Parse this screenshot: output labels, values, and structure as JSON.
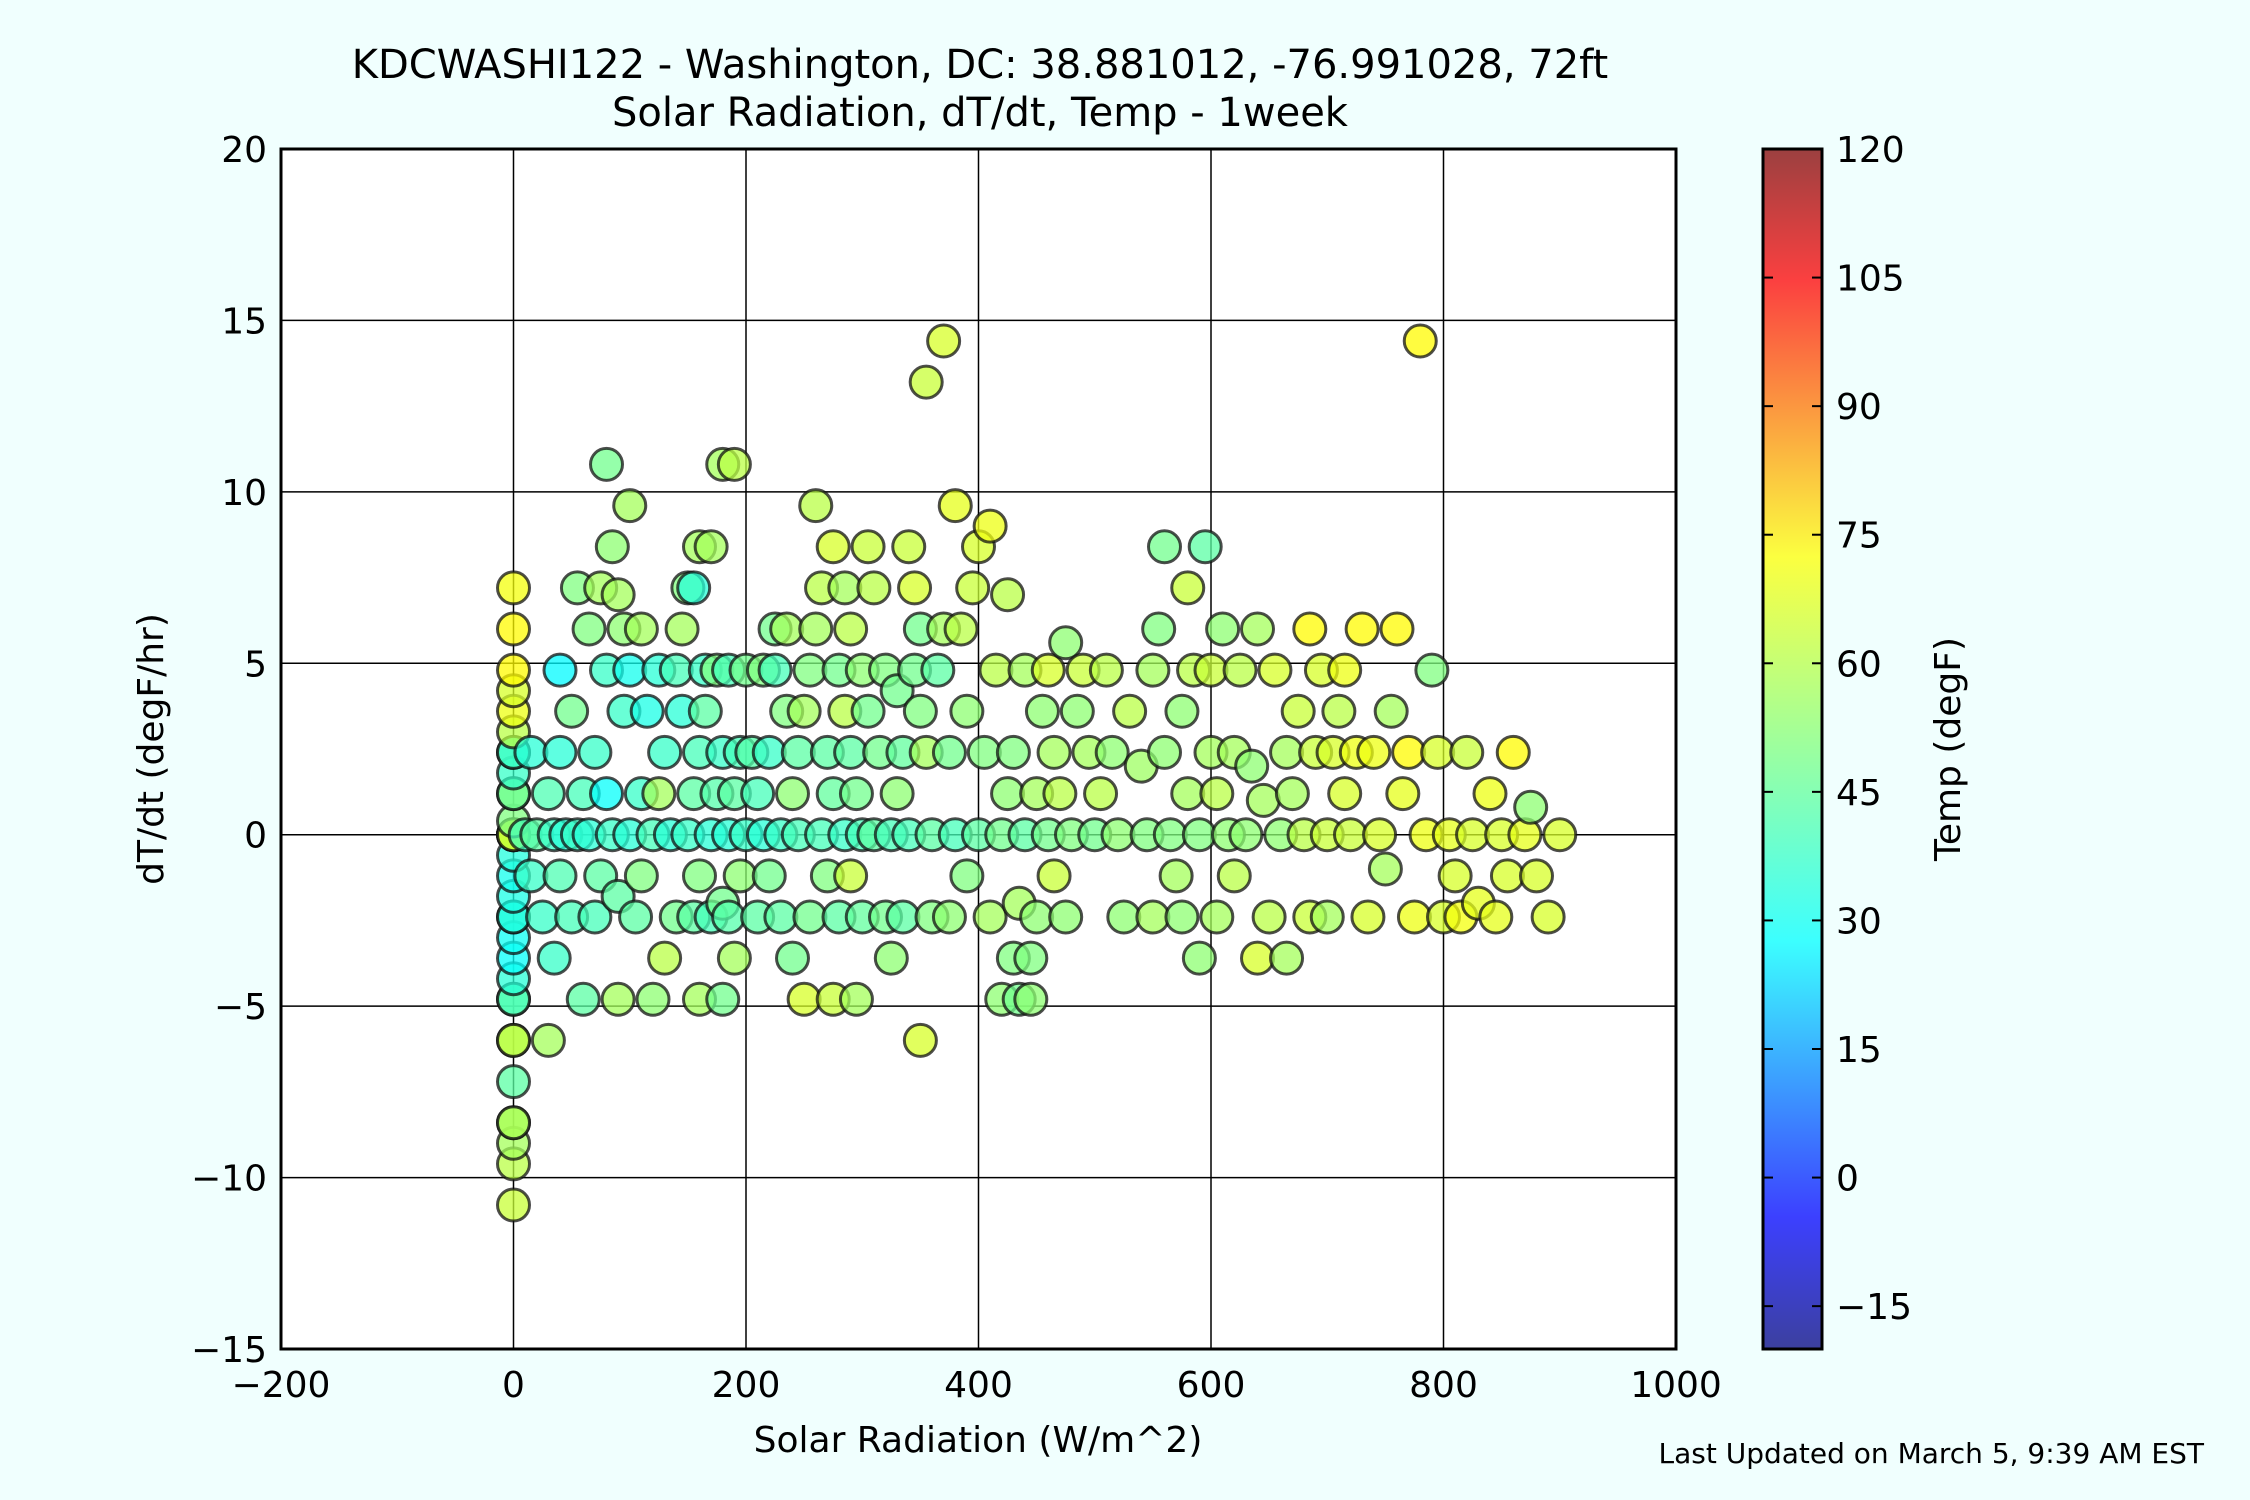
{
  "page": {
    "background": "#f0fffe"
  },
  "chart_data": {
    "type": "scatter",
    "title": "KDCWASHI122 - Washington, DC: 38.881012, -76.991028, 72ft",
    "subtitle": "Solar Radiation, dT/dt, Temp - 1week",
    "xlabel": "Solar Radiation (W/m^2)",
    "ylabel": "dT/dt (degF/hr)",
    "xlim": [
      -200,
      1000
    ],
    "ylim": [
      -15,
      20
    ],
    "x_ticks": [
      -200,
      0,
      200,
      400,
      600,
      800,
      1000
    ],
    "x_tick_labels": [
      "−200",
      "0",
      "200",
      "400",
      "600",
      "800",
      "1000"
    ],
    "y_ticks": [
      -15,
      -10,
      -5,
      0,
      5,
      10,
      15,
      20
    ],
    "y_tick_labels": [
      "−15",
      "−10",
      "−5",
      "0",
      "5",
      "10",
      "15",
      "20"
    ],
    "grid": true,
    "footer": "Last Updated on March 5, 9:39 AM EST",
    "colorbar": {
      "label": "Temp (degF)",
      "range": [
        -20,
        120
      ],
      "ticks": [
        -15,
        0,
        15,
        30,
        45,
        60,
        75,
        90,
        105,
        120
      ],
      "tick_labels": [
        "−15",
        "0",
        "15",
        "30",
        "45",
        "60",
        "75",
        "90",
        "105",
        "120"
      ],
      "colormap": "jet",
      "marker_alpha": 0.75
    },
    "points": [
      [
        0,
        -10.8,
        60
      ],
      [
        0,
        -9.6,
        58
      ],
      [
        0,
        -9,
        55
      ],
      [
        0,
        -8.4,
        58
      ],
      [
        0,
        -8.4,
        55
      ],
      [
        0,
        -7.2,
        45
      ],
      [
        0,
        -6,
        50
      ],
      [
        0,
        -6,
        60
      ],
      [
        0,
        -4.8,
        35
      ],
      [
        0,
        -4.8,
        45
      ],
      [
        0,
        -4.2,
        38
      ],
      [
        0,
        -3.6,
        33
      ],
      [
        0,
        -3,
        34
      ],
      [
        0,
        -2.4,
        32
      ],
      [
        0,
        -2.4,
        38
      ],
      [
        0,
        -1.8,
        36
      ],
      [
        0,
        -1.2,
        35
      ],
      [
        0,
        -0.6,
        37
      ],
      [
        0,
        0,
        40
      ],
      [
        0,
        0,
        45
      ],
      [
        0,
        0,
        55
      ],
      [
        0,
        0,
        62
      ],
      [
        0,
        0.4,
        50
      ],
      [
        0,
        1.2,
        60
      ],
      [
        0,
        1.2,
        45
      ],
      [
        0,
        1.8,
        40
      ],
      [
        0,
        2.4,
        35
      ],
      [
        0,
        2.4,
        42
      ],
      [
        0,
        3,
        58
      ],
      [
        0,
        3.6,
        65
      ],
      [
        0,
        4.2,
        62
      ],
      [
        0,
        4.8,
        68
      ],
      [
        0,
        6,
        68
      ],
      [
        0,
        7.2,
        66
      ],
      [
        10,
        0,
        42
      ],
      [
        15,
        -1.2,
        40
      ],
      [
        15,
        2.4,
        38
      ],
      [
        20,
        0,
        45
      ],
      [
        25,
        -2.4,
        40
      ],
      [
        30,
        1.2,
        43
      ],
      [
        30,
        -6,
        55
      ],
      [
        35,
        0,
        40
      ],
      [
        35,
        -3.6,
        40
      ],
      [
        40,
        2.4,
        38
      ],
      [
        40,
        -1.2,
        43
      ],
      [
        40,
        4.8,
        32
      ],
      [
        45,
        0,
        38
      ],
      [
        50,
        -2.4,
        42
      ],
      [
        50,
        3.6,
        48
      ],
      [
        55,
        0,
        40
      ],
      [
        55,
        7.2,
        50
      ],
      [
        60,
        -4.8,
        45
      ],
      [
        60,
        1.2,
        42
      ],
      [
        65,
        6,
        50
      ],
      [
        65,
        0,
        38
      ],
      [
        70,
        2.4,
        40
      ],
      [
        70,
        -2.4,
        42
      ],
      [
        75,
        -1.2,
        45
      ],
      [
        75,
        7.2,
        55
      ],
      [
        80,
        10.8,
        48
      ],
      [
        80,
        4.8,
        40
      ],
      [
        80,
        1.2,
        33
      ],
      [
        85,
        8.4,
        52
      ],
      [
        85,
        0,
        40
      ],
      [
        90,
        -4.8,
        55
      ],
      [
        90,
        -1.8,
        45
      ],
      [
        90,
        7,
        55
      ],
      [
        95,
        3.6,
        40
      ],
      [
        95,
        6,
        52
      ],
      [
        100,
        9.6,
        55
      ],
      [
        100,
        0,
        38
      ],
      [
        100,
        4.8,
        35
      ],
      [
        105,
        -2.4,
        45
      ],
      [
        110,
        6,
        55
      ],
      [
        110,
        1.2,
        40
      ],
      [
        110,
        -1.2,
        50
      ],
      [
        115,
        3.6,
        36
      ],
      [
        120,
        0,
        42
      ],
      [
        120,
        -4.8,
        52
      ],
      [
        125,
        4.8,
        38
      ],
      [
        125,
        1.2,
        55
      ],
      [
        130,
        -3.6,
        58
      ],
      [
        130,
        2.4,
        40
      ],
      [
        135,
        0,
        38
      ],
      [
        140,
        -2.4,
        48
      ],
      [
        140,
        4.8,
        42
      ],
      [
        145,
        6,
        55
      ],
      [
        145,
        3.6,
        38
      ],
      [
        150,
        0,
        40
      ],
      [
        150,
        7.2,
        50
      ],
      [
        155,
        1.2,
        45
      ],
      [
        155,
        -2.4,
        45
      ],
      [
        155,
        7.2,
        38
      ],
      [
        160,
        2.4,
        42
      ],
      [
        160,
        8.4,
        55
      ],
      [
        160,
        -1.2,
        50
      ],
      [
        160,
        -4.8,
        55
      ],
      [
        165,
        3.6,
        45
      ],
      [
        165,
        4.8,
        40
      ],
      [
        170,
        0,
        38
      ],
      [
        170,
        8.4,
        55
      ],
      [
        170,
        -2.4,
        42
      ],
      [
        175,
        1.2,
        44
      ],
      [
        175,
        4.8,
        50
      ],
      [
        180,
        10.8,
        55
      ],
      [
        180,
        2.4,
        40
      ],
      [
        180,
        -2,
        48
      ],
      [
        180,
        -4.8,
        48
      ],
      [
        185,
        0,
        38
      ],
      [
        185,
        4.8,
        42
      ],
      [
        185,
        -2.4,
        44
      ],
      [
        190,
        1.2,
        45
      ],
      [
        190,
        10.8,
        58
      ],
      [
        190,
        -3.6,
        55
      ],
      [
        195,
        -1.2,
        52
      ],
      [
        195,
        2.4,
        42
      ],
      [
        200,
        4.8,
        48
      ],
      [
        200,
        0,
        40
      ],
      [
        205,
        2.4,
        44
      ],
      [
        210,
        -2.4,
        45
      ],
      [
        210,
        1.2,
        42
      ],
      [
        215,
        4.8,
        50
      ],
      [
        215,
        0,
        38
      ],
      [
        220,
        -1.2,
        48
      ],
      [
        220,
        2.4,
        40
      ],
      [
        225,
        6,
        48
      ],
      [
        225,
        4.8,
        42
      ],
      [
        230,
        0,
        40
      ],
      [
        230,
        -2.4,
        45
      ],
      [
        235,
        3.6,
        50
      ],
      [
        235,
        6,
        55
      ],
      [
        240,
        1.2,
        52
      ],
      [
        240,
        -3.6,
        48
      ],
      [
        245,
        2.4,
        45
      ],
      [
        245,
        0,
        42
      ],
      [
        250,
        -4.8,
        62
      ],
      [
        250,
        3.6,
        55
      ],
      [
        255,
        4.8,
        50
      ],
      [
        255,
        -2.4,
        48
      ],
      [
        260,
        9.6,
        58
      ],
      [
        260,
        6,
        55
      ],
      [
        265,
        0,
        42
      ],
      [
        265,
        7.2,
        58
      ],
      [
        270,
        2.4,
        45
      ],
      [
        270,
        -1.2,
        50
      ],
      [
        275,
        8.4,
        62
      ],
      [
        275,
        1.2,
        46
      ],
      [
        275,
        -4.8,
        60
      ],
      [
        280,
        4.8,
        48
      ],
      [
        280,
        -2.4,
        45
      ],
      [
        285,
        0,
        40
      ],
      [
        285,
        7.2,
        55
      ],
      [
        285,
        3.6,
        58
      ],
      [
        290,
        -1.2,
        60
      ],
      [
        290,
        6,
        58
      ],
      [
        290,
        2.4,
        45
      ],
      [
        295,
        1.2,
        48
      ],
      [
        295,
        -4.8,
        55
      ],
      [
        300,
        4.8,
        52
      ],
      [
        300,
        0,
        42
      ],
      [
        300,
        -2.4,
        46
      ],
      [
        305,
        8.4,
        60
      ],
      [
        305,
        3.6,
        48
      ],
      [
        310,
        7.2,
        58
      ],
      [
        310,
        0,
        45
      ],
      [
        315,
        2.4,
        48
      ],
      [
        320,
        -2.4,
        48
      ],
      [
        320,
        4.8,
        50
      ],
      [
        325,
        0,
        42
      ],
      [
        325,
        -3.6,
        52
      ],
      [
        330,
        4.2,
        48
      ],
      [
        330,
        1.2,
        52
      ],
      [
        335,
        2.4,
        46
      ],
      [
        335,
        -2.4,
        45
      ],
      [
        340,
        8.4,
        60
      ],
      [
        340,
        0,
        42
      ],
      [
        345,
        7.2,
        62
      ],
      [
        345,
        4.8,
        48
      ],
      [
        350,
        -6,
        62
      ],
      [
        350,
        3.6,
        50
      ],
      [
        350,
        6,
        48
      ],
      [
        355,
        2.4,
        55
      ],
      [
        355,
        13.2,
        60
      ],
      [
        360,
        0,
        45
      ],
      [
        360,
        -2.4,
        50
      ],
      [
        365,
        4.8,
        45
      ],
      [
        370,
        6,
        55
      ],
      [
        370,
        14.4,
        62
      ],
      [
        375,
        2.4,
        48
      ],
      [
        375,
        -2.4,
        52
      ],
      [
        380,
        9.6,
        64
      ],
      [
        380,
        0,
        42
      ],
      [
        385,
        6,
        58
      ],
      [
        390,
        3.6,
        52
      ],
      [
        390,
        -1.2,
        50
      ],
      [
        395,
        7.2,
        60
      ],
      [
        400,
        8.4,
        62
      ],
      [
        400,
        0,
        45
      ],
      [
        405,
        2.4,
        50
      ],
      [
        410,
        -2.4,
        55
      ],
      [
        410,
        9,
        65
      ],
      [
        415,
        4.8,
        58
      ],
      [
        420,
        0,
        48
      ],
      [
        420,
        -4.8,
        52
      ],
      [
        425,
        7,
        58
      ],
      [
        425,
        1.2,
        52
      ],
      [
        430,
        -3.6,
        50
      ],
      [
        430,
        2.4,
        50
      ],
      [
        435,
        -4.8,
        48
      ],
      [
        435,
        -2,
        55
      ],
      [
        440,
        0,
        45
      ],
      [
        440,
        4.8,
        55
      ],
      [
        445,
        -3.6,
        50
      ],
      [
        445,
        -4.8,
        52
      ],
      [
        450,
        1.2,
        55
      ],
      [
        450,
        -2.4,
        52
      ],
      [
        455,
        3.6,
        52
      ],
      [
        460,
        0,
        48
      ],
      [
        460,
        4.8,
        62
      ],
      [
        465,
        -1.2,
        60
      ],
      [
        465,
        2.4,
        55
      ],
      [
        470,
        1.2,
        58
      ],
      [
        475,
        5.6,
        52
      ],
      [
        475,
        -2.4,
        52
      ],
      [
        480,
        0,
        50
      ],
      [
        485,
        3.6,
        52
      ],
      [
        490,
        4.8,
        60
      ],
      [
        495,
        2.4,
        55
      ],
      [
        500,
        0,
        48
      ],
      [
        505,
        1.2,
        58
      ],
      [
        510,
        4.8,
        58
      ],
      [
        515,
        2.4,
        52
      ],
      [
        520,
        0,
        52
      ],
      [
        525,
        -2.4,
        52
      ],
      [
        530,
        3.6,
        58
      ],
      [
        540,
        2,
        54
      ],
      [
        545,
        0,
        50
      ],
      [
        550,
        4.8,
        55
      ],
      [
        550,
        -2.4,
        55
      ],
      [
        555,
        6,
        50
      ],
      [
        560,
        2.4,
        52
      ],
      [
        560,
        8.4,
        48
      ],
      [
        565,
        0,
        50
      ],
      [
        570,
        -1.2,
        55
      ],
      [
        575,
        3.6,
        52
      ],
      [
        575,
        -2.4,
        52
      ],
      [
        580,
        7.2,
        60
      ],
      [
        580,
        1.2,
        55
      ],
      [
        585,
        4.8,
        58
      ],
      [
        590,
        0,
        50
      ],
      [
        590,
        -3.6,
        52
      ],
      [
        595,
        8.4,
        45
      ],
      [
        600,
        2.4,
        55
      ],
      [
        600,
        4.8,
        60
      ],
      [
        605,
        1.2,
        58
      ],
      [
        605,
        -2.4,
        55
      ],
      [
        610,
        6,
        52
      ],
      [
        615,
        0,
        52
      ],
      [
        620,
        -1.2,
        58
      ],
      [
        620,
        2.4,
        55
      ],
      [
        625,
        4.8,
        58
      ],
      [
        630,
        0,
        52
      ],
      [
        635,
        2,
        52
      ],
      [
        640,
        6,
        55
      ],
      [
        640,
        -3.6,
        62
      ],
      [
        645,
        1,
        55
      ],
      [
        650,
        -2.4,
        58
      ],
      [
        655,
        4.8,
        62
      ],
      [
        660,
        0,
        52
      ],
      [
        665,
        -3.6,
        55
      ],
      [
        665,
        2.4,
        55
      ],
      [
        670,
        1.2,
        55
      ],
      [
        675,
        3.6,
        60
      ],
      [
        680,
        0,
        58
      ],
      [
        685,
        6,
        68
      ],
      [
        685,
        -2.4,
        60
      ],
      [
        690,
        2.4,
        60
      ],
      [
        695,
        4.8,
        62
      ],
      [
        700,
        0,
        60
      ],
      [
        700,
        -2.4,
        55
      ],
      [
        705,
        2.4,
        62
      ],
      [
        710,
        3.6,
        58
      ],
      [
        715,
        1.2,
        62
      ],
      [
        715,
        4.8,
        65
      ],
      [
        720,
        0,
        60
      ],
      [
        725,
        2.4,
        65
      ],
      [
        730,
        6,
        68
      ],
      [
        735,
        -2.4,
        62
      ],
      [
        740,
        2.4,
        65
      ],
      [
        745,
        0,
        62
      ],
      [
        750,
        -1,
        55
      ],
      [
        755,
        3.6,
        55
      ],
      [
        760,
        6,
        68
      ],
      [
        765,
        1.2,
        64
      ],
      [
        770,
        2.4,
        68
      ],
      [
        775,
        -2.4,
        65
      ],
      [
        780,
        14.4,
        68
      ],
      [
        785,
        0,
        65
      ],
      [
        790,
        4.8,
        50
      ],
      [
        795,
        2.4,
        62
      ],
      [
        800,
        -2.4,
        62
      ],
      [
        805,
        0,
        64
      ],
      [
        810,
        -1.2,
        62
      ],
      [
        815,
        -2.4,
        66
      ],
      [
        820,
        2.4,
        60
      ],
      [
        825,
        0,
        62
      ],
      [
        830,
        -2,
        64
      ],
      [
        840,
        1.2,
        65
      ],
      [
        845,
        -2.4,
        64
      ],
      [
        850,
        0,
        62
      ],
      [
        855,
        -1.2,
        62
      ],
      [
        860,
        2.4,
        68
      ],
      [
        870,
        0,
        64
      ],
      [
        875,
        0.8,
        52
      ],
      [
        880,
        -1.2,
        62
      ],
      [
        890,
        -2.4,
        62
      ],
      [
        900,
        0,
        62
      ]
    ]
  }
}
